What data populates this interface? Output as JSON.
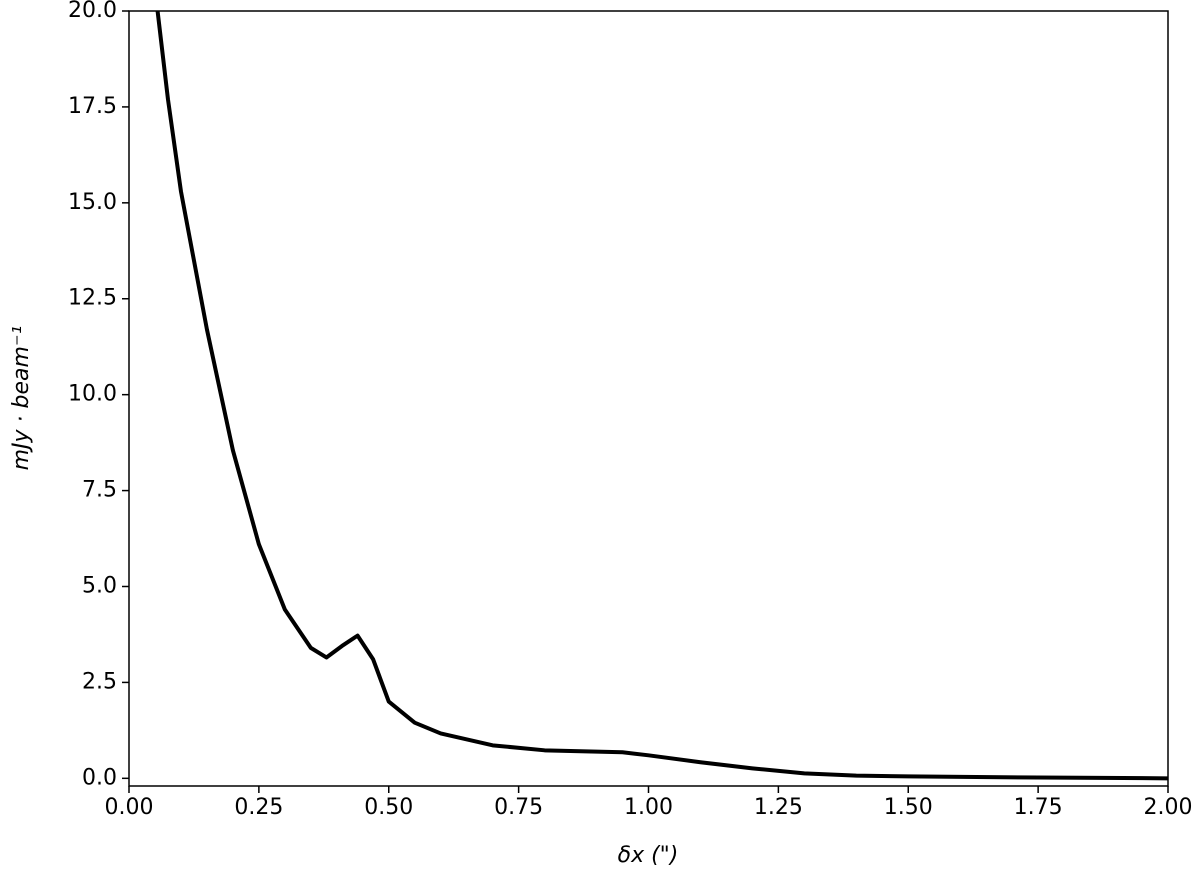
{
  "chart_data": {
    "type": "line",
    "xlabel": "δx (\")",
    "ylabel": "mJy · beam⁻¹",
    "x": [
      0.055,
      0.075,
      0.1,
      0.15,
      0.2,
      0.25,
      0.3,
      0.35,
      0.38,
      0.41,
      0.44,
      0.47,
      0.5,
      0.55,
      0.6,
      0.7,
      0.8,
      0.95,
      1.0,
      1.1,
      1.2,
      1.3,
      1.4,
      1.5,
      1.75,
      2.0
    ],
    "series": [
      {
        "color": "#000000",
        "values": [
          20,
          17.7,
          15.3,
          11.7,
          8.55,
          6.1,
          4.4,
          3.4,
          3.15,
          3.45,
          3.72,
          3.1,
          2.0,
          1.45,
          1.17,
          0.86,
          0.73,
          0.68,
          0.6,
          0.42,
          0.26,
          0.13,
          0.07,
          0.05,
          0.02,
          0.0
        ]
      }
    ],
    "xlim": [
      0,
      2
    ],
    "ylim": [
      -0.2,
      20
    ],
    "xticks": [
      {
        "value": 0,
        "label": "0.00"
      },
      0.25,
      {
        "value": 0.5,
        "label": "0.50"
      },
      0.75,
      {
        "value": 1,
        "label": "1.00"
      },
      1.25,
      {
        "value": 1.5,
        "label": "1.50"
      },
      1.75,
      {
        "value": 2,
        "label": "2.00"
      }
    ],
    "yticks": [
      {
        "value": 0,
        "label": "0.0"
      },
      2.5,
      {
        "value": 5,
        "label": "5.0"
      },
      7.5,
      {
        "value": 10,
        "label": "10.0"
      },
      12.5,
      {
        "value": 15,
        "label": "15.0"
      },
      17.5,
      {
        "value": 20,
        "label": "20.0"
      }
    ],
    "grid": false
  }
}
